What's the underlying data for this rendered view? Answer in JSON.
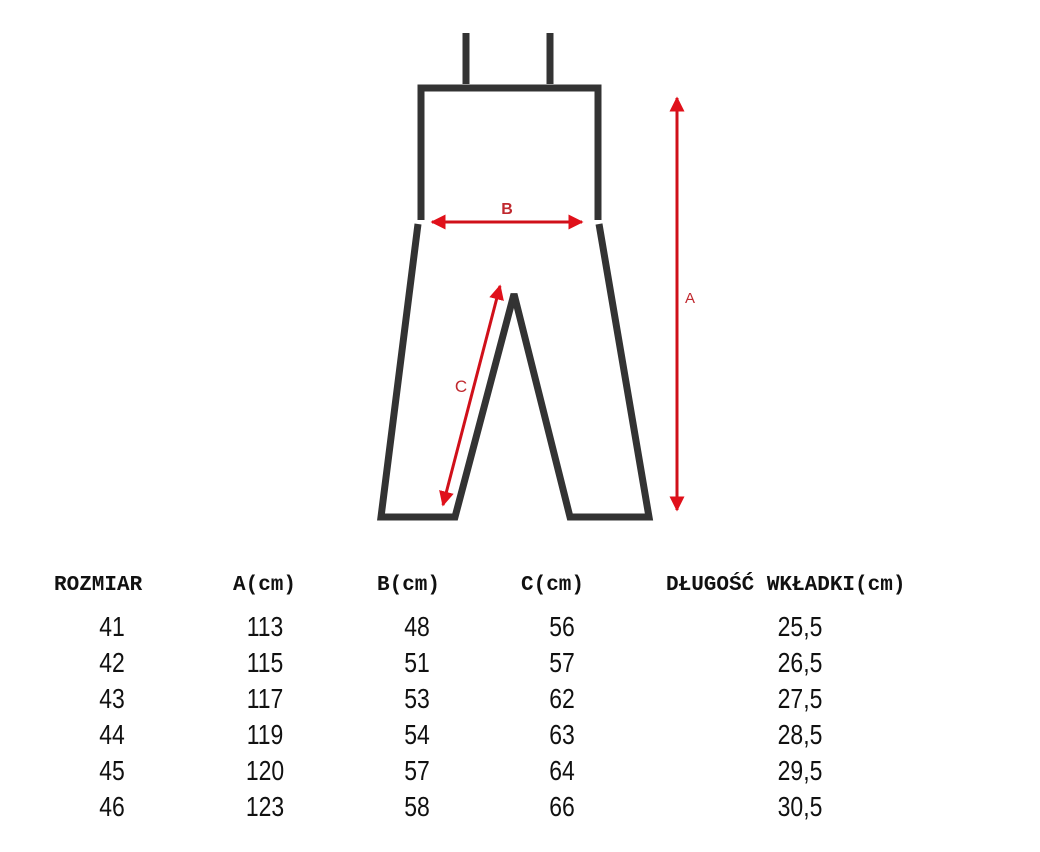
{
  "diagram": {
    "labels": {
      "a": "A",
      "b": "B",
      "c": "C"
    },
    "colors": {
      "outline": "#333333",
      "arrow": "#d0101a",
      "label": "#c0282e"
    }
  },
  "table": {
    "headers": [
      "ROZMIAR",
      "A(cm)",
      "B(cm)",
      "C(cm)",
      "DŁUGOŚĆ WKŁADKI(cm)"
    ],
    "rows": [
      [
        "41",
        "113",
        "48",
        "56",
        "25,5"
      ],
      [
        "42",
        "115",
        "51",
        "57",
        "26,5"
      ],
      [
        "43",
        "117",
        "53",
        "62",
        "27,5"
      ],
      [
        "44",
        "119",
        "54",
        "63",
        "28,5"
      ],
      [
        "45",
        "120",
        "57",
        "64",
        "29,5"
      ],
      [
        "46",
        "123",
        "58",
        "66",
        "30,5"
      ]
    ]
  }
}
